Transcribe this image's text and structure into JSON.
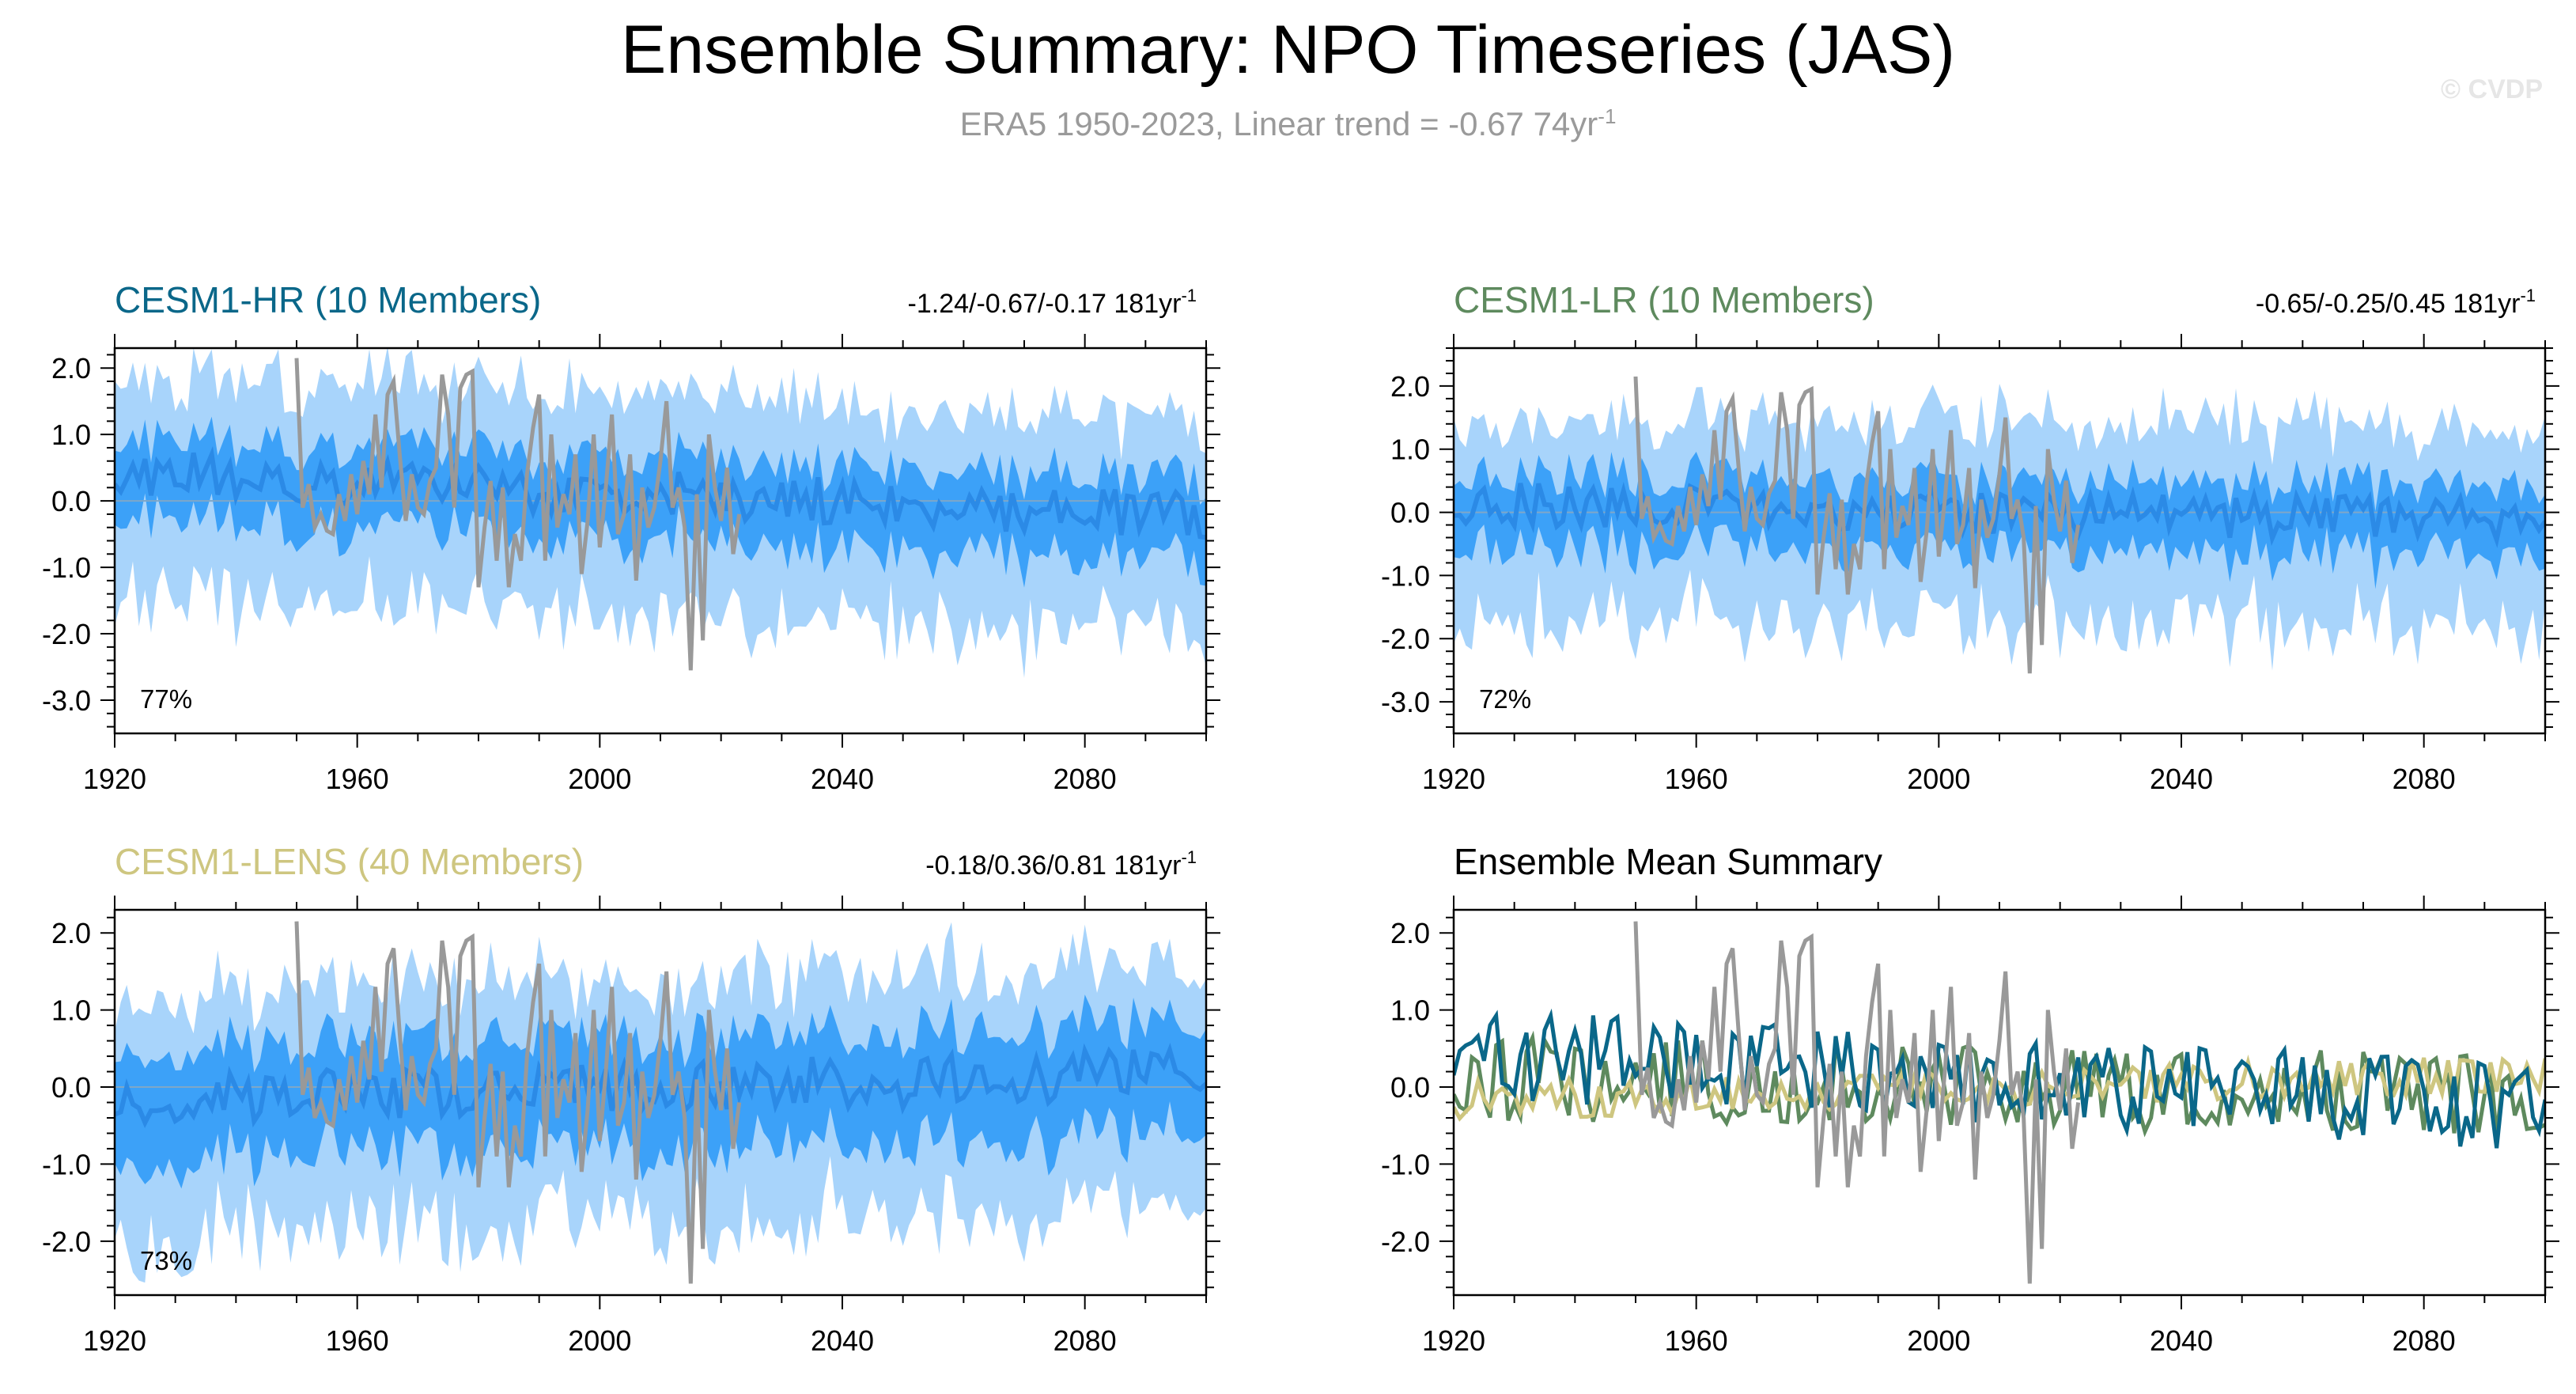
{
  "header": {
    "title": "Ensemble Summary: NPO Timeseries (JAS)",
    "subtitle": "ERA5 1950-2023, Linear trend = -0.67 74yr",
    "subtitle_exp": "-1",
    "watermark": "© CVDP"
  },
  "colors": {
    "hr": "#0a6789",
    "lr": "#5e8a5e",
    "lens": "#cec680",
    "obs": "#999999",
    "band_outer": "#a8d4fb",
    "band_inner": "#3ca1f8",
    "mean_line": "#2b8ae6"
  },
  "chart_data": [
    {
      "id": "hr",
      "type": "area",
      "title": "CESM1-HR (10 Members)",
      "title_color": "#0a6789",
      "trend": "-1.24/-0.67/-0.17 181yr",
      "trend_exp": "-1",
      "percent": "77%",
      "xlim": [
        1920,
        2100
      ],
      "ylim": [
        -3.5,
        2.3
      ],
      "xticks": [
        "1920",
        "1960",
        "2000",
        "2040",
        "2080"
      ],
      "yticks": [
        "2.0",
        "1.0",
        "0.0",
        "-1.0",
        "-2.0",
        "-3.0"
      ],
      "mean_level": 0.1,
      "inner_half": 0.55,
      "outer_half": 1.35,
      "trend_slope": -0.0037,
      "seed": 11
    },
    {
      "id": "lr",
      "type": "area",
      "title": "CESM1-LR (10 Members)",
      "title_color": "#5e8a5e",
      "trend": "-0.65/-0.25/0.45 181yr",
      "trend_exp": "-1",
      "percent": "72%",
      "xlim": [
        1920,
        2100
      ],
      "ylim": [
        -3.5,
        2.6
      ],
      "xticks": [
        "1920",
        "1960",
        "2000",
        "2040",
        "2080"
      ],
      "yticks": [
        "2.0",
        "1.0",
        "0.0",
        "-1.0",
        "-2.0",
        "-3.0"
      ],
      "mean_level": 0.0,
      "inner_half": 0.5,
      "outer_half": 1.3,
      "trend_slope": -0.0014,
      "seed": 23
    },
    {
      "id": "lens",
      "type": "area",
      "title": "CESM1-LENS (40 Members)",
      "title_color": "#cec680",
      "trend": "-0.18/0.36/0.81 181yr",
      "trend_exp": "-1",
      "percent": "73%",
      "xlim": [
        1920,
        2100
      ],
      "ylim": [
        -2.7,
        2.3
      ],
      "xticks": [
        "1920",
        "1960",
        "2000",
        "2040",
        "2080"
      ],
      "yticks": [
        "2.0",
        "1.0",
        "0.0",
        "-1.0",
        "-2.0"
      ],
      "mean_level": 0.0,
      "inner_half": 0.65,
      "outer_half": 1.3,
      "trend_slope": 0.002,
      "seed": 37
    },
    {
      "id": "summary",
      "type": "line",
      "title": "Ensemble Mean Summary",
      "title_color": "#000000",
      "xlim": [
        1920,
        2100
      ],
      "ylim": [
        -2.7,
        2.3
      ],
      "xticks": [
        "1920",
        "1960",
        "2000",
        "2040",
        "2080"
      ],
      "yticks": [
        "2.0",
        "1.0",
        "0.0",
        "-1.0",
        "-2.0"
      ],
      "series": [
        {
          "name": "CESM1-HR",
          "color": "#0a6789"
        },
        {
          "name": "CESM1-LR",
          "color": "#5e8a5e"
        },
        {
          "name": "CESM1-LENS",
          "color": "#cec680"
        },
        {
          "name": "ERA5",
          "color": "#999999"
        }
      ]
    }
  ],
  "observations": {
    "name": "ERA5",
    "years": [
      1950,
      1951,
      1952,
      1953,
      1954,
      1955,
      1956,
      1957,
      1958,
      1959,
      1960,
      1961,
      1962,
      1963,
      1964,
      1965,
      1966,
      1967,
      1968,
      1969,
      1970,
      1971,
      1972,
      1973,
      1974,
      1975,
      1976,
      1977,
      1978,
      1979,
      1980,
      1981,
      1982,
      1983,
      1984,
      1985,
      1986,
      1987,
      1988,
      1989,
      1990,
      1991,
      1992,
      1993,
      1994,
      1995,
      1996,
      1997,
      1998,
      1999,
      2000,
      2001,
      2002,
      2003,
      2004,
      2005,
      2006,
      2007,
      2008,
      2009,
      2010,
      2011,
      2012,
      2013,
      2014,
      2015,
      2016,
      2017,
      2018,
      2019,
      2020,
      2021,
      2022,
      2023
    ],
    "values": [
      2.15,
      -0.1,
      0.25,
      -0.4,
      -0.2,
      -0.45,
      -0.5,
      0.1,
      -0.3,
      0.4,
      -0.2,
      0.6,
      0.1,
      1.3,
      0.2,
      1.6,
      1.8,
      0.7,
      -0.3,
      0.4,
      -0.1,
      -0.2,
      0.3,
      0.5,
      1.9,
      1.3,
      -0.1,
      1.7,
      1.9,
      1.95,
      -1.3,
      -0.4,
      0.3,
      -0.9,
      0.2,
      -1.3,
      -0.5,
      -0.9,
      0.4,
      1.1,
      1.6,
      -0.9,
      1.0,
      -0.4,
      0.1,
      -0.2,
      0.7,
      -1.1,
      -0.3,
      1.0,
      -0.7,
      0.2,
      1.3,
      -0.5,
      -0.2,
      0.7,
      -1.2,
      0.2,
      -0.4,
      -0.1,
      0.6,
      1.5,
      -0.1,
      0.2,
      -0.4,
      -2.55,
      0.1,
      -2.1,
      1.0,
      0.2,
      -0.3,
      0.5,
      -0.8,
      -0.2
    ]
  }
}
